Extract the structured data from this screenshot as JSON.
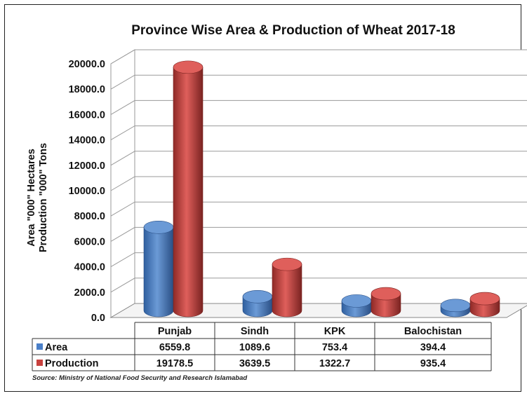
{
  "chart_data": {
    "type": "bar",
    "title": "Province Wise Area & Production of Wheat 2017-18",
    "ylabel": [
      "Area \"000\" Hectares",
      "Production \"000\" Tons"
    ],
    "ylim": [
      0,
      20000
    ],
    "yticks": [
      "0.0",
      "2000.0",
      "4000.0",
      "6000.0",
      "8000.0",
      "10000.0",
      "12000.0",
      "14000.0",
      "16000.0",
      "18000.0",
      "20000.0"
    ],
    "categories": [
      "Punjab",
      "Sindh",
      "KPK",
      "Balochistan"
    ],
    "series": [
      {
        "name": "Area",
        "color": "#4a7fc8",
        "values": [
          6559.8,
          1089.6,
          753.4,
          394.4
        ],
        "labels": [
          "6559.8",
          "1089.6",
          "753.4",
          "394.4"
        ]
      },
      {
        "name": "Production",
        "color": "#c8413e",
        "values": [
          19178.5,
          3639.5,
          1322.7,
          935.4
        ],
        "labels": [
          "19178.5",
          "3639.5",
          "1322.7",
          "935.4"
        ]
      }
    ],
    "grid": true,
    "legend": "data-table",
    "source": "Source: Ministry of National Food Security and Research Islamabad"
  }
}
